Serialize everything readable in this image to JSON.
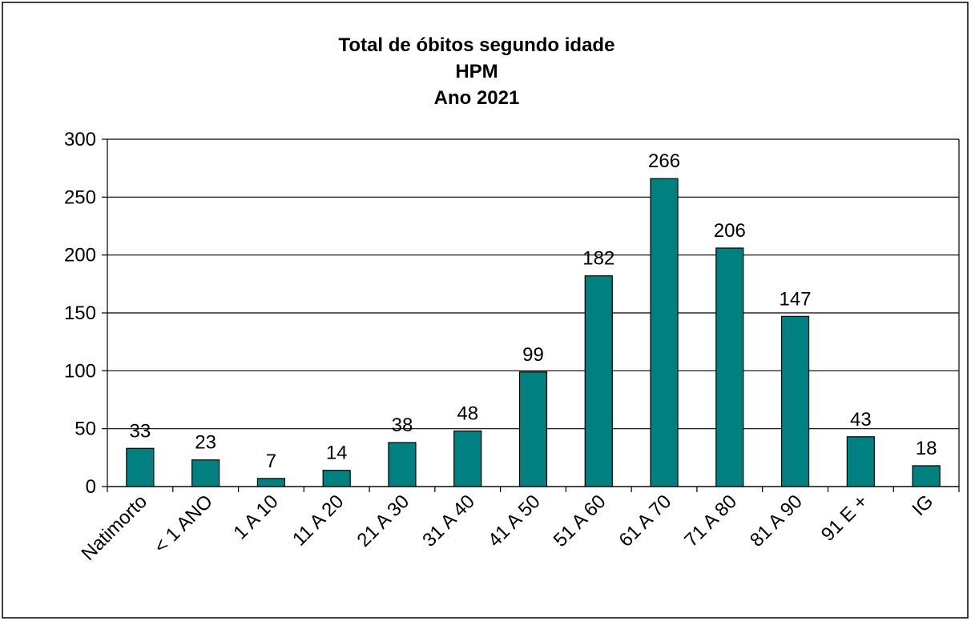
{
  "chart_data": {
    "type": "bar",
    "title": [
      "Total de óbitos segundo idade",
      "HPM",
      "Ano 2021"
    ],
    "categories": [
      "Natimorto",
      "< 1 ANO",
      "1 A 10",
      "11 A 20",
      "21 A 30",
      "31 A 40",
      "41 A 50",
      "51 A 60",
      "61 A 70",
      "71 A 80",
      "81 A 90",
      "91 E +",
      "IG"
    ],
    "values": [
      33,
      23,
      7,
      14,
      38,
      48,
      99,
      182,
      266,
      206,
      147,
      43,
      18
    ],
    "color": "#008080",
    "ylim": [
      0,
      300
    ],
    "yticks": [
      0,
      50,
      100,
      150,
      200,
      250,
      300
    ],
    "grid": true
  }
}
